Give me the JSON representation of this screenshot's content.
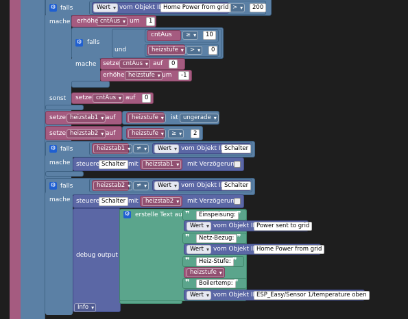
{
  "kw": {
    "falls": "falls",
    "mache": "mache",
    "sonst": "sonst",
    "und": "und",
    "erhoehe": "erhöhe",
    "um": "um",
    "setze": "setze",
    "auf": "auf",
    "vom_objekt_id": "vom Objekt ID",
    "ist": "ist",
    "steuere": "steuere",
    "mit": "mit",
    "mit_verzoegerung": "mit Verzögerung",
    "debug_output": "debug output",
    "erstelle_text": "erstelle Text aus",
    "quote": "❞"
  },
  "values": {
    "wert": "Wert",
    "home_power": "Home Power from grid",
    "power_sent": "Power sent to grid",
    "esp_sensor": "ESP_Easy/Sensor 1/temperature oben",
    "schalter": "Schalter",
    "gt": ">",
    "ge": "≥",
    "ne": "≠",
    "ungerade": "ungerade",
    "n200": "200",
    "n1": "1",
    "n10": "10",
    "n0": "0",
    "n_1": "-1",
    "n2": "2",
    "cntAus": "cntAus",
    "heizstufe": "heizstufe",
    "heizstab1": "heizstab1",
    "heizstab2": "heizstab2",
    "info": "Info"
  },
  "texts": {
    "einspeisung": "Einspeisung:",
    "netzbezug": "Netz-Bezug:",
    "heizstufe_lbl": "Heiz-Stufe:",
    "boilertemp": "Boilertemp:"
  },
  "colors": {
    "logic": "#5b80a5",
    "variables": "#a55b80",
    "getters": "#5b67a5",
    "text": "#5ba58c",
    "gear_icon": "#1f5fd1",
    "background": "#1e1e1e"
  },
  "icons": [
    "gear-icon",
    "dropdown-arrow-icon",
    "checkbox-icon",
    "quote-icon"
  ]
}
